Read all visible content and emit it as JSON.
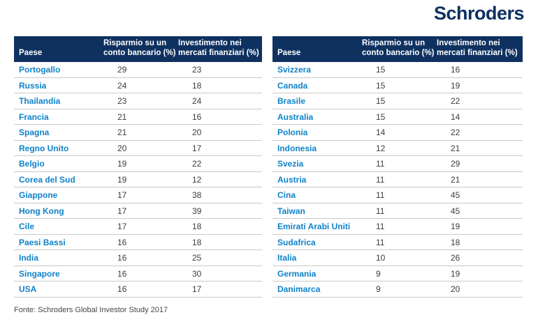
{
  "logo": {
    "text": "Schroders"
  },
  "columns": {
    "country": "Paese",
    "savings": "Risparmio su un\nconto bancario (%)",
    "investment": "Investimento nei\nmercati finanziari (%)"
  },
  "tables": [
    {
      "rows": [
        {
          "country": "Portogallo",
          "savings": 29,
          "investment": 23
        },
        {
          "country": "Russia",
          "savings": 24,
          "investment": 18
        },
        {
          "country": "Thailandia",
          "savings": 23,
          "investment": 24
        },
        {
          "country": "Francia",
          "savings": 21,
          "investment": 16
        },
        {
          "country": "Spagna",
          "savings": 21,
          "investment": 20
        },
        {
          "country": "Regno Unito",
          "savings": 20,
          "investment": 17
        },
        {
          "country": "Belgio",
          "savings": 19,
          "investment": 22
        },
        {
          "country": "Corea del Sud",
          "savings": 19,
          "investment": 12
        },
        {
          "country": "Giappone",
          "savings": 17,
          "investment": 38
        },
        {
          "country": "Hong Kong",
          "savings": 17,
          "investment": 39
        },
        {
          "country": "Cile",
          "savings": 17,
          "investment": 18
        },
        {
          "country": "Paesi Bassi",
          "savings": 16,
          "investment": 18
        },
        {
          "country": "India",
          "savings": 16,
          "investment": 25
        },
        {
          "country": "Singapore",
          "savings": 16,
          "investment": 30
        },
        {
          "country": "USA",
          "savings": 16,
          "investment": 17
        }
      ]
    },
    {
      "rows": [
        {
          "country": "Svizzera",
          "savings": 15,
          "investment": 16
        },
        {
          "country": "Canada",
          "savings": 15,
          "investment": 19
        },
        {
          "country": "Brasile",
          "savings": 15,
          "investment": 22
        },
        {
          "country": "Australia",
          "savings": 15,
          "investment": 14
        },
        {
          "country": "Polonia",
          "savings": 14,
          "investment": 22
        },
        {
          "country": "Indonesia",
          "savings": 12,
          "investment": 21
        },
        {
          "country": "Svezia",
          "savings": 11,
          "investment": 29
        },
        {
          "country": "Austria",
          "savings": 11,
          "investment": 21
        },
        {
          "country": "Cina",
          "savings": 11,
          "investment": 45
        },
        {
          "country": "Taiwan",
          "savings": 11,
          "investment": 45
        },
        {
          "country": "Emirati Arabi Uniti",
          "savings": 11,
          "investment": 19
        },
        {
          "country": "Sudafrica",
          "savings": 11,
          "investment": 18
        },
        {
          "country": "Italia",
          "savings": 10,
          "investment": 26
        },
        {
          "country": "Germania",
          "savings": 9,
          "investment": 19
        },
        {
          "country": "Danimarca",
          "savings": 9,
          "investment": 20
        }
      ]
    }
  ],
  "footer": {
    "source": "Fonte: Schroders Global Investor Study 2017"
  },
  "colors": {
    "header_navy": "#0e3160",
    "country_blue": "#0e82c8",
    "value_text": "#3c3c3c",
    "row_border": "#c9c9c9"
  },
  "chart_data": {
    "type": "table",
    "columns": [
      "Paese",
      "Risparmio su un conto bancario (%)",
      "Investimento nei mercati finanziari (%)"
    ],
    "rows": [
      [
        "Portogallo",
        29,
        23
      ],
      [
        "Russia",
        24,
        18
      ],
      [
        "Thailandia",
        23,
        24
      ],
      [
        "Francia",
        21,
        16
      ],
      [
        "Spagna",
        21,
        20
      ],
      [
        "Regno Unito",
        20,
        17
      ],
      [
        "Belgio",
        19,
        22
      ],
      [
        "Corea del Sud",
        19,
        12
      ],
      [
        "Giappone",
        17,
        38
      ],
      [
        "Hong Kong",
        17,
        39
      ],
      [
        "Cile",
        17,
        18
      ],
      [
        "Paesi Bassi",
        16,
        18
      ],
      [
        "India",
        16,
        25
      ],
      [
        "Singapore",
        16,
        30
      ],
      [
        "USA",
        16,
        17
      ],
      [
        "Svizzera",
        15,
        16
      ],
      [
        "Canada",
        15,
        19
      ],
      [
        "Brasile",
        15,
        22
      ],
      [
        "Australia",
        15,
        14
      ],
      [
        "Polonia",
        14,
        22
      ],
      [
        "Indonesia",
        12,
        21
      ],
      [
        "Svezia",
        11,
        29
      ],
      [
        "Austria",
        11,
        21
      ],
      [
        "Cina",
        11,
        45
      ],
      [
        "Taiwan",
        11,
        45
      ],
      [
        "Emirati Arabi Uniti",
        11,
        19
      ],
      [
        "Sudafrica",
        11,
        18
      ],
      [
        "Italia",
        10,
        26
      ],
      [
        "Germania",
        9,
        19
      ],
      [
        "Danimarca",
        9,
        20
      ]
    ],
    "title": "",
    "source": "Fonte: Schroders Global Investor Study 2017",
    "legend_position": "none",
    "grid": "horizontal-row-separators"
  }
}
